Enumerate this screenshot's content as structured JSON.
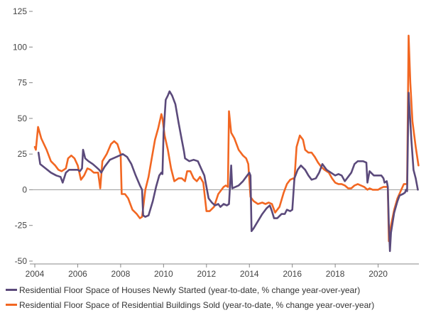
{
  "chart_data": {
    "type": "line",
    "title": "",
    "xlabel": "",
    "ylabel": "",
    "xlim": [
      2003.9,
      2021.9
    ],
    "ylim": [
      -52,
      128
    ],
    "x_ticks": [
      "2004",
      "2006",
      "2008",
      "2010",
      "2012",
      "2014",
      "2016",
      "2018",
      "2020"
    ],
    "y_ticks": [
      "125",
      "100",
      "75",
      "50",
      "25",
      "0",
      "-25",
      "-50"
    ],
    "zero_line": true,
    "grid": false,
    "legend_position": "bottom",
    "series": [
      {
        "name": "Residential Floor Space of Houses Newly Started (year-to-date, % change year-over-year)",
        "color": "#5b4a7b",
        "points": [
          [
            2004.17,
            26
          ],
          [
            2004.25,
            18
          ],
          [
            2004.5,
            15
          ],
          [
            2004.75,
            12
          ],
          [
            2005.0,
            10
          ],
          [
            2005.2,
            9
          ],
          [
            2005.3,
            5
          ],
          [
            2005.45,
            12
          ],
          [
            2005.6,
            14
          ],
          [
            2005.8,
            14
          ],
          [
            2006.0,
            14
          ],
          [
            2006.1,
            13
          ],
          [
            2006.2,
            15
          ],
          [
            2006.25,
            28
          ],
          [
            2006.35,
            22
          ],
          [
            2006.5,
            20
          ],
          [
            2006.7,
            18
          ],
          [
            2006.85,
            16
          ],
          [
            2007.0,
            14
          ],
          [
            2007.1,
            12
          ],
          [
            2007.25,
            16
          ],
          [
            2007.5,
            21
          ],
          [
            2007.8,
            23
          ],
          [
            2007.95,
            24
          ],
          [
            2008.1,
            25
          ],
          [
            2008.3,
            23
          ],
          [
            2008.5,
            18
          ],
          [
            2008.7,
            10
          ],
          [
            2008.9,
            3
          ],
          [
            2009.0,
            0
          ],
          [
            2009.05,
            -18
          ],
          [
            2009.15,
            -19
          ],
          [
            2009.3,
            -18
          ],
          [
            2009.5,
            -8
          ],
          [
            2009.65,
            2
          ],
          [
            2009.8,
            10
          ],
          [
            2009.9,
            12
          ],
          [
            2009.95,
            11
          ],
          [
            2010.0,
            40
          ],
          [
            2010.1,
            63
          ],
          [
            2010.2,
            66
          ],
          [
            2010.28,
            69
          ],
          [
            2010.4,
            66
          ],
          [
            2010.55,
            60
          ],
          [
            2010.7,
            47
          ],
          [
            2010.85,
            35
          ],
          [
            2010.95,
            27
          ],
          [
            2011.0,
            22
          ],
          [
            2011.2,
            20
          ],
          [
            2011.4,
            21
          ],
          [
            2011.6,
            20
          ],
          [
            2011.75,
            15
          ],
          [
            2011.9,
            10
          ],
          [
            2012.0,
            2
          ],
          [
            2012.1,
            -6
          ],
          [
            2012.25,
            -9
          ],
          [
            2012.4,
            -11
          ],
          [
            2012.55,
            -10
          ],
          [
            2012.65,
            -12
          ],
          [
            2012.8,
            -10
          ],
          [
            2012.95,
            -11
          ],
          [
            2013.05,
            -10
          ],
          [
            2013.15,
            17
          ],
          [
            2013.2,
            1
          ],
          [
            2013.35,
            2
          ],
          [
            2013.5,
            3
          ],
          [
            2013.7,
            6
          ],
          [
            2013.85,
            9
          ],
          [
            2014.0,
            12
          ],
          [
            2014.05,
            10
          ],
          [
            2014.1,
            -29
          ],
          [
            2014.2,
            -27
          ],
          [
            2014.4,
            -22
          ],
          [
            2014.6,
            -17
          ],
          [
            2014.8,
            -13
          ],
          [
            2014.95,
            -11
          ],
          [
            2015.05,
            -15
          ],
          [
            2015.15,
            -20
          ],
          [
            2015.3,
            -20
          ],
          [
            2015.5,
            -17
          ],
          [
            2015.65,
            -17
          ],
          [
            2015.75,
            -14
          ],
          [
            2015.9,
            -15
          ],
          [
            2016.0,
            -14
          ],
          [
            2016.1,
            8
          ],
          [
            2016.25,
            14
          ],
          [
            2016.4,
            17
          ],
          [
            2016.6,
            14
          ],
          [
            2016.75,
            10
          ],
          [
            2016.9,
            7
          ],
          [
            2017.1,
            8
          ],
          [
            2017.25,
            12
          ],
          [
            2017.4,
            18
          ],
          [
            2017.6,
            14
          ],
          [
            2017.8,
            12
          ],
          [
            2018.0,
            10
          ],
          [
            2018.15,
            11
          ],
          [
            2018.3,
            10
          ],
          [
            2018.45,
            6
          ],
          [
            2018.6,
            9
          ],
          [
            2018.75,
            12
          ],
          [
            2018.9,
            18
          ],
          [
            2019.05,
            20
          ],
          [
            2019.3,
            20
          ],
          [
            2019.45,
            19
          ],
          [
            2019.5,
            5
          ],
          [
            2019.6,
            13
          ],
          [
            2019.8,
            10
          ],
          [
            2020.0,
            10
          ],
          [
            2020.15,
            10
          ],
          [
            2020.25,
            8
          ],
          [
            2020.3,
            5
          ],
          [
            2020.4,
            6
          ],
          [
            2020.45,
            2
          ],
          [
            2020.5,
            -25
          ],
          [
            2020.55,
            -43
          ],
          [
            2020.6,
            -30
          ],
          [
            2020.75,
            -16
          ],
          [
            2020.9,
            -8
          ],
          [
            2021.0,
            -4
          ],
          [
            2021.15,
            -3
          ],
          [
            2021.25,
            -2
          ],
          [
            2021.3,
            0
          ],
          [
            2021.35,
            -1
          ],
          [
            2021.42,
            68
          ],
          [
            2021.55,
            35
          ],
          [
            2021.65,
            14
          ],
          [
            2021.75,
            8
          ],
          [
            2021.85,
            0
          ]
        ]
      },
      {
        "name": "Residential Floor Space of Residential Buildings Sold (year-to-date, % change year-over-year)",
        "color": "#f26722",
        "points": [
          [
            2004.0,
            30
          ],
          [
            2004.05,
            28
          ],
          [
            2004.15,
            44
          ],
          [
            2004.3,
            36
          ],
          [
            2004.55,
            28
          ],
          [
            2004.75,
            20
          ],
          [
            2004.95,
            17
          ],
          [
            2005.1,
            14
          ],
          [
            2005.25,
            13
          ],
          [
            2005.45,
            15
          ],
          [
            2005.55,
            22
          ],
          [
            2005.7,
            24
          ],
          [
            2005.85,
            22
          ],
          [
            2006.0,
            17
          ],
          [
            2006.15,
            7
          ],
          [
            2006.3,
            10
          ],
          [
            2006.45,
            15
          ],
          [
            2006.6,
            14
          ],
          [
            2006.75,
            12
          ],
          [
            2006.95,
            12
          ],
          [
            2007.05,
            1
          ],
          [
            2007.15,
            20
          ],
          [
            2007.35,
            25
          ],
          [
            2007.55,
            32
          ],
          [
            2007.7,
            34
          ],
          [
            2007.85,
            32
          ],
          [
            2008.0,
            25
          ],
          [
            2008.05,
            -3
          ],
          [
            2008.2,
            -3
          ],
          [
            2008.35,
            -6
          ],
          [
            2008.55,
            -14
          ],
          [
            2008.75,
            -17
          ],
          [
            2008.9,
            -20
          ],
          [
            2009.0,
            -19
          ],
          [
            2009.15,
            0
          ],
          [
            2009.3,
            9
          ],
          [
            2009.45,
            22
          ],
          [
            2009.6,
            35
          ],
          [
            2009.75,
            43
          ],
          [
            2009.9,
            53
          ],
          [
            2009.95,
            50
          ],
          [
            2010.05,
            38
          ],
          [
            2010.2,
            28
          ],
          [
            2010.35,
            15
          ],
          [
            2010.5,
            6
          ],
          [
            2010.7,
            8
          ],
          [
            2010.85,
            8
          ],
          [
            2011.0,
            6
          ],
          [
            2011.1,
            13
          ],
          [
            2011.25,
            13
          ],
          [
            2011.4,
            8
          ],
          [
            2011.55,
            6
          ],
          [
            2011.7,
            9
          ],
          [
            2011.85,
            5
          ],
          [
            2012.0,
            -15
          ],
          [
            2012.15,
            -15
          ],
          [
            2012.35,
            -12
          ],
          [
            2012.55,
            -3
          ],
          [
            2012.7,
            0
          ],
          [
            2012.8,
            2
          ],
          [
            2012.9,
            3
          ],
          [
            2013.0,
            2
          ],
          [
            2013.05,
            55
          ],
          [
            2013.15,
            40
          ],
          [
            2013.3,
            36
          ],
          [
            2013.5,
            28
          ],
          [
            2013.7,
            24
          ],
          [
            2013.85,
            22
          ],
          [
            2013.95,
            18
          ],
          [
            2014.05,
            -5
          ],
          [
            2014.2,
            -8
          ],
          [
            2014.4,
            -10
          ],
          [
            2014.6,
            -9
          ],
          [
            2014.75,
            -10
          ],
          [
            2014.9,
            -9
          ],
          [
            2015.05,
            -10
          ],
          [
            2015.2,
            -16
          ],
          [
            2015.4,
            -12
          ],
          [
            2015.6,
            -2
          ],
          [
            2015.75,
            4
          ],
          [
            2015.9,
            7
          ],
          [
            2016.05,
            8
          ],
          [
            2016.1,
            7
          ],
          [
            2016.2,
            30
          ],
          [
            2016.35,
            38
          ],
          [
            2016.5,
            35
          ],
          [
            2016.6,
            28
          ],
          [
            2016.75,
            26
          ],
          [
            2016.9,
            26
          ],
          [
            2017.05,
            23
          ],
          [
            2017.2,
            19
          ],
          [
            2017.35,
            16
          ],
          [
            2017.5,
            14
          ],
          [
            2017.7,
            12
          ],
          [
            2017.85,
            8
          ],
          [
            2018.0,
            5
          ],
          [
            2018.15,
            4
          ],
          [
            2018.3,
            4
          ],
          [
            2018.45,
            3
          ],
          [
            2018.6,
            1
          ],
          [
            2018.75,
            1
          ],
          [
            2018.9,
            3
          ],
          [
            2019.05,
            4
          ],
          [
            2019.2,
            3
          ],
          [
            2019.35,
            2
          ],
          [
            2019.5,
            0
          ],
          [
            2019.6,
            1
          ],
          [
            2019.75,
            0
          ],
          [
            2019.9,
            0
          ],
          [
            2020.0,
            0
          ],
          [
            2020.1,
            1
          ],
          [
            2020.25,
            2
          ],
          [
            2020.45,
            2
          ],
          [
            2020.5,
            -36
          ],
          [
            2020.6,
            -25
          ],
          [
            2020.75,
            -14
          ],
          [
            2020.9,
            -6
          ],
          [
            2021.05,
            -1
          ],
          [
            2021.2,
            4
          ],
          [
            2021.35,
            4
          ],
          [
            2021.42,
            108
          ],
          [
            2021.5,
            75
          ],
          [
            2021.6,
            48
          ],
          [
            2021.75,
            30
          ],
          [
            2021.88,
            17
          ]
        ]
      }
    ]
  }
}
